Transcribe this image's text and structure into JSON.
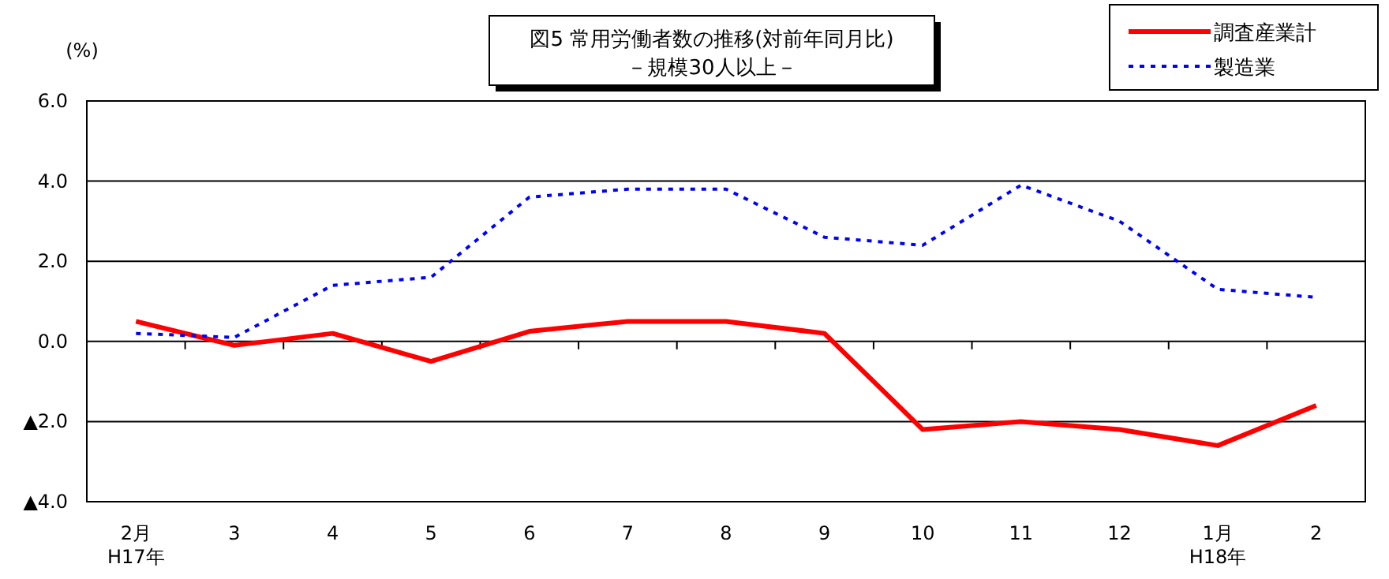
{
  "chart_data": {
    "type": "line",
    "title": "図5  常用労働者数の推移(対前年同月比)",
    "subtitle": "－規模30人以上－",
    "ylabel": "(%)",
    "categories": [
      "2月\nH17年",
      "3",
      "4",
      "5",
      "6",
      "7",
      "8",
      "9",
      "10",
      "11",
      "12",
      "1月\nH18年",
      "2"
    ],
    "series": [
      {
        "name": "調査産業計",
        "color": "#ff0000",
        "line_style": "solid",
        "values": [
          0.5,
          -0.1,
          0.2,
          -0.5,
          0.25,
          0.5,
          0.5,
          0.2,
          -2.2,
          -2.0,
          -2.2,
          -2.6,
          -1.6
        ]
      },
      {
        "name": "製造業",
        "color": "#0000ff",
        "line_style": "dotted",
        "values": [
          0.2,
          0.1,
          1.4,
          1.6,
          3.6,
          3.8,
          3.8,
          2.6,
          2.4,
          3.9,
          3.0,
          1.3,
          1.1
        ]
      }
    ],
    "ylim": [
      -4,
      6
    ],
    "yticks": [
      {
        "value": -4,
        "label": "▲4.0"
      },
      {
        "value": -2,
        "label": "▲2.0"
      },
      {
        "value": 0,
        "label": "0.0"
      },
      {
        "value": 2,
        "label": "2.0"
      },
      {
        "value": 4,
        "label": "4.0"
      },
      {
        "value": 6,
        "label": "6.0"
      }
    ],
    "grid": "y",
    "legend": "top right",
    "marker": "none"
  }
}
